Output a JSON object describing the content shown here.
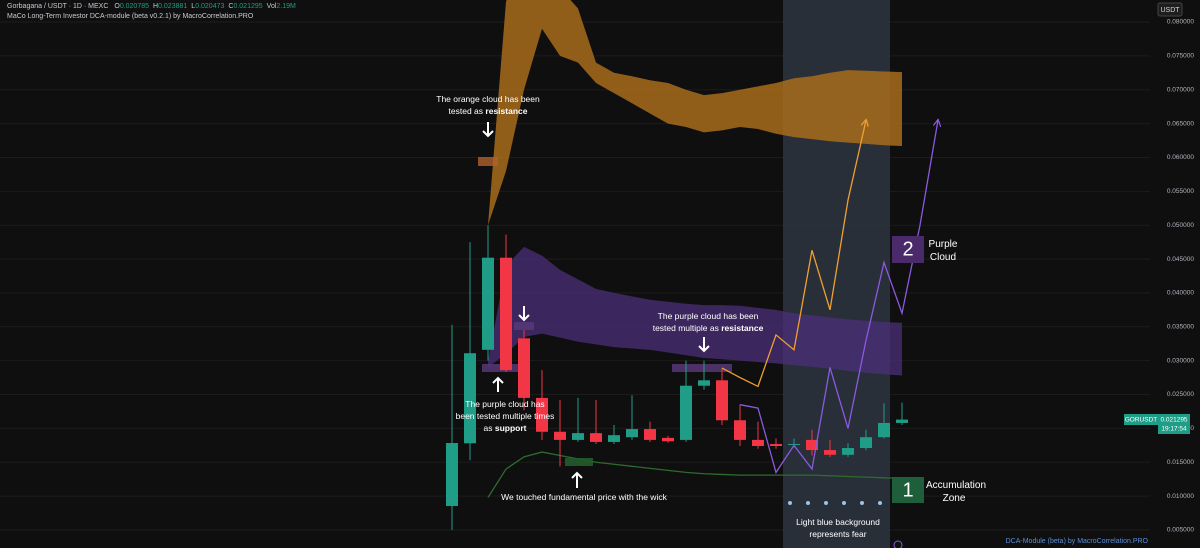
{
  "chart_data": {
    "type": "candlestick",
    "title": "Gorbagana / USDT · 1D · MEXC",
    "ohlc_header": [
      {
        "label": "O",
        "value": 0.020785
      },
      {
        "label": "H",
        "value": 0.023881
      },
      {
        "label": "L",
        "value": 0.020473
      },
      {
        "label": "C",
        "value": 0.021295
      },
      {
        "label": "Vol",
        "value": "2.19M"
      }
    ],
    "indicator": "MaCo Long-Term Investor DCA-module (beta v0.2.1) by MacroCorrelation.PRO",
    "currency_button": "USDT",
    "price_tag": {
      "symbol": "GORUSDT",
      "price": 0.021295,
      "countdown": "19:17:54"
    },
    "up_color": "#1f9d87",
    "down_color": "#f23645",
    "grid": true,
    "categories": [
      null,
      null,
      null,
      null,
      null,
      null,
      null,
      null,
      null,
      null,
      null,
      null,
      null,
      null,
      null,
      null,
      null,
      null,
      null,
      null,
      null,
      null,
      null,
      null,
      null,
      null,
      null,
      null
    ],
    "open": [
      0.00854,
      0.0178,
      0.0316,
      0.0452,
      0.0333,
      0.0245,
      0.0195,
      0.0183,
      0.0193,
      0.018,
      0.0187,
      0.0199,
      0.0186,
      0.0183,
      0.0263,
      0.0271,
      0.0212,
      0.0183,
      0.0177,
      0.0176,
      0.0183,
      0.0168,
      0.0161,
      0.0171,
      0.0187,
      0.0208,
      null,
      null
    ],
    "high": [
      0.0353,
      0.0475,
      0.05,
      0.0486,
      0.0345,
      0.0286,
      0.0242,
      0.0245,
      0.0242,
      0.0205,
      0.0249,
      0.021,
      0.0189,
      0.03,
      0.03,
      0.0289,
      0.0235,
      0.021,
      0.0185,
      0.0185,
      0.0198,
      0.0183,
      0.0178,
      0.0198,
      0.0237,
      0.0238,
      null,
      null
    ],
    "low": [
      0.005,
      0.0153,
      0.03,
      0.0283,
      0.0227,
      0.0183,
      0.0144,
      0.018,
      0.0177,
      0.0177,
      0.0183,
      0.018,
      0.0179,
      0.018,
      0.0257,
      0.0205,
      0.0174,
      0.017,
      0.017,
      0.0172,
      0.016,
      0.0158,
      0.0158,
      0.0168,
      0.0185,
      0.0205,
      null,
      null
    ],
    "close": [
      0.01784,
      0.0311,
      0.0452,
      0.0286,
      0.0245,
      0.0195,
      0.0183,
      0.0193,
      0.018,
      0.019,
      0.0199,
      0.0183,
      0.0181,
      0.0263,
      0.0271,
      0.0212,
      0.0183,
      0.0174,
      0.0174,
      0.0177,
      0.0168,
      0.0161,
      0.0171,
      0.0187,
      0.0208,
      0.0213,
      null,
      null
    ],
    "clouds": [
      {
        "color": "#a86c1c",
        "opacity": 0.85,
        "upper": [
          null,
          null,
          0.05,
          0.083,
          0.09,
          0.088,
          0.085,
          0.082,
          0.074,
          0.0725,
          0.072,
          0.0714,
          0.071,
          0.07,
          0.0692,
          0.0695,
          0.07,
          0.0705,
          0.071,
          0.0717,
          0.072,
          0.0725,
          0.0729,
          0.0728,
          0.0727,
          0.0726,
          null,
          null
        ],
        "lower": [
          null,
          null,
          0.05,
          0.058,
          0.07,
          0.079,
          0.075,
          0.074,
          0.071,
          0.0695,
          0.068,
          0.0665,
          0.065,
          0.0645,
          0.0637,
          0.064,
          0.0645,
          0.0642,
          0.0635,
          0.063,
          0.0627,
          0.0624,
          0.0622,
          0.062,
          0.0618,
          0.0617,
          null,
          null
        ]
      },
      {
        "color": "#4b2f7a",
        "opacity": 0.75,
        "upper": [
          null,
          null,
          0.03,
          0.044,
          0.0468,
          0.0455,
          0.0434,
          0.042,
          0.0406,
          0.04,
          0.0395,
          0.039,
          0.0387,
          0.0384,
          0.0382,
          0.0382,
          0.0381,
          0.0378,
          0.0375,
          0.037,
          0.0367,
          0.0364,
          0.0361,
          0.0359,
          0.0357,
          0.0356,
          null,
          null
        ],
        "lower": [
          null,
          null,
          0.029,
          0.031,
          0.0335,
          0.034,
          0.0334,
          0.0328,
          0.0324,
          0.032,
          0.0318,
          0.0316,
          0.0312,
          0.0308,
          0.0304,
          0.0302,
          0.03,
          0.0298,
          0.0296,
          0.0293,
          0.0291,
          0.0288,
          0.0285,
          0.0282,
          0.028,
          0.0278,
          null,
          null
        ]
      }
    ],
    "lines": [
      {
        "color": "#2d6b2f",
        "arrow": false,
        "values": [
          null,
          null,
          0.0098,
          0.014,
          0.0158,
          0.0165,
          0.016,
          0.0155,
          0.015,
          0.0147,
          0.0144,
          0.0141,
          0.0138,
          0.0135,
          0.0133,
          0.0132,
          0.0131,
          0.0131,
          0.0131,
          0.0131,
          0.0131,
          0.013,
          0.0129,
          0.0128,
          0.0127,
          0.0126,
          null,
          null
        ]
      },
      {
        "color": "#f0a030",
        "arrow": true,
        "values": [
          null,
          null,
          null,
          null,
          null,
          null,
          null,
          null,
          null,
          null,
          null,
          null,
          null,
          null,
          null,
          0.0289,
          0.0275,
          0.0262,
          0.0338,
          0.0316,
          0.0463,
          0.0375,
          0.0537,
          0.0655,
          null,
          null,
          null,
          null
        ]
      },
      {
        "color": "#8a5ae0",
        "arrow": true,
        "values": [
          null,
          null,
          null,
          null,
          null,
          null,
          null,
          null,
          null,
          null,
          null,
          null,
          null,
          null,
          null,
          null,
          0.0235,
          0.023,
          0.0135,
          0.0175,
          0.014,
          0.029,
          0.02,
          0.033,
          0.0445,
          0.037,
          0.05,
          0.0655
        ]
      }
    ],
    "ylim": [
      0.00234,
      0.08325
    ],
    "yticks": [
      {
        "value": 0.005,
        "label": "0.005000"
      },
      {
        "value": 0.01,
        "label": "0.010000"
      },
      {
        "value": 0.015,
        "label": "0.015000"
      },
      {
        "value": 0.02,
        "label": "0.020000"
      },
      {
        "value": 0.025,
        "label": "0.025000"
      },
      {
        "value": 0.03,
        "label": "0.030000"
      },
      {
        "value": 0.035,
        "label": "0.035000"
      },
      {
        "value": 0.04,
        "label": "0.040000"
      },
      {
        "value": 0.045,
        "label": "0.045000"
      },
      {
        "value": 0.05,
        "label": "0.050000"
      },
      {
        "value": 0.055,
        "label": "0.055000"
      },
      {
        "value": 0.06,
        "label": "0.060000"
      },
      {
        "value": 0.065,
        "label": "0.065000"
      },
      {
        "value": 0.07,
        "label": "0.070000"
      },
      {
        "value": 0.075,
        "label": "0.075000"
      },
      {
        "value": 0.08,
        "label": "0.080000"
      }
    ],
    "annotations": [
      {
        "text": "The orange cloud has been tested as",
        "bold": "resistance"
      },
      {
        "text": "The purple cloud has been tested multiple as",
        "bold": "resistance"
      },
      {
        "text": "The purple cloud has been tested multiple times as",
        "bold": "support"
      },
      {
        "text": "We touched fundamental price with the wick"
      },
      {
        "text": "Light blue background represents fear"
      }
    ],
    "zones": [
      {
        "number": "1",
        "label": "Accumulation Zone"
      },
      {
        "number": "2",
        "label": "Purple Cloud"
      }
    ],
    "footer": "DCA-Module (beta) by MacroCorrelation.PRO"
  }
}
